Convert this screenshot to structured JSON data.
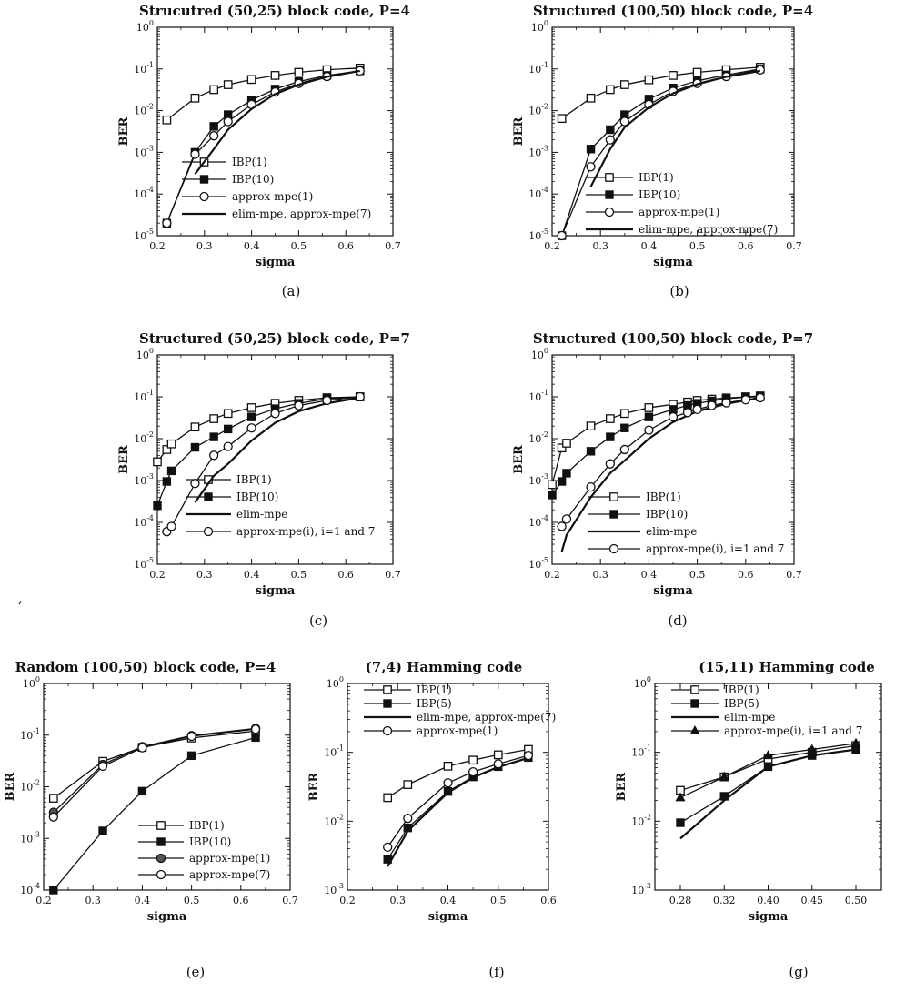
{
  "figure": {
    "stray_mark": ","
  },
  "chart_data": [
    {
      "caption": "(a)",
      "type": "line",
      "title": "Strucutred (50,25)  block code,  P=4",
      "xlabel": "sigma",
      "ylabel": "BER",
      "xlim": [
        0.2,
        0.7
      ],
      "ylim": [
        1e-05,
        1
      ],
      "yscale": "log",
      "xticks": [
        0.2,
        0.3,
        0.4,
        0.5,
        0.6,
        0.7
      ],
      "yticks": [
        -5,
        -4,
        -3,
        -2,
        -1,
        0
      ],
      "series": [
        {
          "name": "IBP(1)",
          "marker": "square-open",
          "x": [
            0.22,
            0.28,
            0.32,
            0.35,
            0.4,
            0.45,
            0.5,
            0.56,
            0.63
          ],
          "y": [
            0.006,
            0.02,
            0.032,
            0.042,
            0.056,
            0.07,
            0.083,
            0.096,
            0.105
          ]
        },
        {
          "name": "IBP(10)",
          "marker": "square-filled",
          "x": [
            0.22,
            0.28,
            0.32,
            0.35,
            0.4,
            0.45,
            0.5,
            0.56,
            0.63
          ],
          "y": [
            2e-05,
            0.001,
            0.0042,
            0.008,
            0.018,
            0.033,
            0.05,
            0.07,
            0.09
          ]
        },
        {
          "name": "approx-mpe(1)",
          "marker": "circle-open",
          "x": [
            0.22,
            0.28,
            0.32,
            0.35,
            0.4,
            0.45,
            0.5,
            0.56,
            0.63
          ],
          "y": [
            2e-05,
            0.0009,
            0.0025,
            0.0055,
            0.014,
            0.028,
            0.045,
            0.066,
            0.09
          ]
        },
        {
          "name": "elim-mpe,  approx-mpe(7)",
          "marker": "none",
          "x": [
            0.28,
            0.32,
            0.35,
            0.4,
            0.45,
            0.5,
            0.56,
            0.63
          ],
          "y": [
            0.0003,
            0.0012,
            0.0035,
            0.011,
            0.025,
            0.042,
            0.065,
            0.09
          ]
        }
      ]
    },
    {
      "caption": "(b)",
      "type": "line",
      "title": "Structured (100,50) block code, P=4",
      "xlabel": "sigma",
      "ylabel": "BER",
      "xlim": [
        0.2,
        0.7
      ],
      "ylim": [
        1e-05,
        1
      ],
      "yscale": "log",
      "xticks": [
        0.2,
        0.3,
        0.4,
        0.5,
        0.6,
        0.7
      ],
      "yticks": [
        -5,
        -4,
        -3,
        -2,
        -1,
        0
      ],
      "series": [
        {
          "name": "IBP(1)",
          "marker": "square-open",
          "x": [
            0.22,
            0.28,
            0.32,
            0.35,
            0.4,
            0.45,
            0.5,
            0.56,
            0.63
          ],
          "y": [
            0.0065,
            0.02,
            0.032,
            0.042,
            0.055,
            0.07,
            0.083,
            0.096,
            0.11
          ]
        },
        {
          "name": "IBP(10)",
          "marker": "square-filled",
          "x": [
            0.22,
            0.28,
            0.32,
            0.35,
            0.4,
            0.45,
            0.5,
            0.56,
            0.63
          ],
          "y": [
            1e-05,
            0.0012,
            0.0035,
            0.008,
            0.019,
            0.035,
            0.052,
            0.072,
            0.1
          ]
        },
        {
          "name": "approx-mpe(1)",
          "marker": "circle-open",
          "x": [
            0.22,
            0.28,
            0.32,
            0.35,
            0.4,
            0.45,
            0.5,
            0.56,
            0.63
          ],
          "y": [
            1e-05,
            0.00045,
            0.002,
            0.0055,
            0.014,
            0.029,
            0.045,
            0.066,
            0.095
          ]
        },
        {
          "name": "elim-mpe, approx-mpe(7)",
          "marker": "none",
          "x": [
            0.28,
            0.32,
            0.35,
            0.4,
            0.45,
            0.5,
            0.56,
            0.63
          ],
          "y": [
            0.00015,
            0.0012,
            0.004,
            0.012,
            0.026,
            0.043,
            0.065,
            0.09
          ]
        }
      ]
    },
    {
      "caption": "(c)",
      "type": "line",
      "title": "Structured (50,25) block code, P=7",
      "xlabel": "sigma",
      "ylabel": "BER",
      "xlim": [
        0.2,
        0.7
      ],
      "ylim": [
        1e-05,
        1
      ],
      "yscale": "log",
      "xticks": [
        0.2,
        0.3,
        0.4,
        0.5,
        0.6,
        0.7
      ],
      "yticks": [
        -5,
        -4,
        -3,
        -2,
        -1,
        0
      ],
      "series": [
        {
          "name": "IBP(1)",
          "marker": "square-open",
          "x": [
            0.2,
            0.22,
            0.23,
            0.28,
            0.32,
            0.35,
            0.4,
            0.45,
            0.5,
            0.56,
            0.63
          ],
          "y": [
            0.0028,
            0.0055,
            0.0075,
            0.019,
            0.03,
            0.04,
            0.055,
            0.07,
            0.082,
            0.095,
            0.1
          ]
        },
        {
          "name": "IBP(10)",
          "marker": "square-filled",
          "x": [
            0.2,
            0.22,
            0.23,
            0.28,
            0.32,
            0.35,
            0.4,
            0.45,
            0.5,
            0.56,
            0.63
          ],
          "y": [
            0.00025,
            0.00095,
            0.0017,
            0.0062,
            0.011,
            0.017,
            0.033,
            0.052,
            0.07,
            0.09,
            0.1
          ]
        },
        {
          "name": "elim-mpe",
          "marker": "none",
          "x": [
            0.28,
            0.32,
            0.35,
            0.4,
            0.45,
            0.5,
            0.56,
            0.63
          ],
          "y": [
            0.0003,
            0.0013,
            0.0025,
            0.009,
            0.024,
            0.045,
            0.07,
            0.095
          ]
        },
        {
          "name": "approx-mpe(i), i=1 and 7",
          "marker": "circle-open",
          "x": [
            0.22,
            0.23,
            0.28,
            0.32,
            0.35,
            0.4,
            0.45,
            0.5,
            0.56,
            0.63
          ],
          "y": [
            6e-05,
            8e-05,
            0.00085,
            0.004,
            0.0065,
            0.018,
            0.04,
            0.062,
            0.082,
            0.1
          ]
        }
      ]
    },
    {
      "caption": "(d)",
      "type": "line",
      "title": "Structured (100,50) block code, P=7",
      "xlabel": "sigma",
      "ylabel": "BER",
      "xlim": [
        0.2,
        0.7
      ],
      "ylim": [
        1e-05,
        1
      ],
      "yscale": "log",
      "xticks": [
        0.2,
        0.3,
        0.4,
        0.5,
        0.6,
        0.7
      ],
      "yticks": [
        -5,
        -4,
        -3,
        -2,
        -1,
        0
      ],
      "series": [
        {
          "name": "IBP(1)",
          "marker": "square-open",
          "x": [
            0.2,
            0.22,
            0.23,
            0.28,
            0.32,
            0.35,
            0.4,
            0.45,
            0.48,
            0.5,
            0.53,
            0.56,
            0.6,
            0.63
          ],
          "y": [
            0.0008,
            0.006,
            0.0078,
            0.02,
            0.03,
            0.04,
            0.055,
            0.066,
            0.075,
            0.082,
            0.088,
            0.094,
            0.1,
            0.105
          ]
        },
        {
          "name": "IBP(10)",
          "marker": "square-filled",
          "x": [
            0.2,
            0.22,
            0.23,
            0.28,
            0.32,
            0.35,
            0.4,
            0.45,
            0.48,
            0.5,
            0.53,
            0.56,
            0.6,
            0.63
          ],
          "y": [
            0.00045,
            0.00095,
            0.0015,
            0.005,
            0.011,
            0.018,
            0.033,
            0.05,
            0.062,
            0.07,
            0.08,
            0.09,
            0.098,
            0.1
          ]
        },
        {
          "name": "elim-mpe",
          "marker": "none",
          "x": [
            0.22,
            0.23,
            0.28,
            0.32,
            0.35,
            0.4,
            0.45,
            0.5,
            0.56,
            0.63
          ],
          "y": [
            2e-05,
            5e-05,
            0.0004,
            0.0015,
            0.003,
            0.01,
            0.025,
            0.045,
            0.068,
            0.095
          ]
        },
        {
          "name": "approx-mpe(i), i=1 and 7",
          "marker": "circle-open",
          "x": [
            0.22,
            0.23,
            0.28,
            0.32,
            0.35,
            0.4,
            0.45,
            0.48,
            0.5,
            0.53,
            0.56,
            0.6,
            0.63
          ],
          "y": [
            8e-05,
            0.00012,
            0.0007,
            0.0025,
            0.0055,
            0.016,
            0.033,
            0.042,
            0.05,
            0.062,
            0.072,
            0.085,
            0.095
          ]
        }
      ]
    },
    {
      "caption": "(e)",
      "type": "line",
      "title": "Random (100,50) block code, P=4",
      "xlabel": "sigma",
      "ylabel": "BER",
      "xlim": [
        0.2,
        0.7
      ],
      "ylim": [
        0.0001,
        1
      ],
      "yscale": "log",
      "xticks": [
        0.2,
        0.3,
        0.4,
        0.5,
        0.6,
        0.7
      ],
      "yticks": [
        -4,
        -3,
        -2,
        -1,
        0
      ],
      "series": [
        {
          "name": "IBP(1)",
          "marker": "square-open",
          "x": [
            0.22,
            0.32,
            0.4,
            0.5,
            0.63
          ],
          "y": [
            0.006,
            0.031,
            0.058,
            0.088,
            0.12
          ]
        },
        {
          "name": "IBP(10)",
          "marker": "square-filled",
          "x": [
            0.22,
            0.32,
            0.4,
            0.5,
            0.63
          ],
          "y": [
            0.0001,
            0.0014,
            0.0082,
            0.04,
            0.09
          ]
        },
        {
          "name": "approx-mpe(1)",
          "marker": "circle-filled",
          "x": [
            0.22,
            0.32,
            0.4,
            0.5,
            0.63
          ],
          "y": [
            0.0032,
            0.027,
            0.06,
            0.098,
            0.135
          ]
        },
        {
          "name": "approx-mpe(7)",
          "marker": "circle-open",
          "x": [
            0.22,
            0.32,
            0.4,
            0.5,
            0.63
          ],
          "y": [
            0.0026,
            0.025,
            0.057,
            0.095,
            0.13
          ]
        }
      ]
    },
    {
      "caption": "(f)",
      "type": "line",
      "title": "(7,4) Hamming code",
      "xlabel": "sigma",
      "ylabel": "BER",
      "xlim": [
        0.2,
        0.6
      ],
      "ylim": [
        0.001,
        1
      ],
      "yscale": "log",
      "xticks": [
        0.2,
        0.3,
        0.4,
        0.5,
        0.6
      ],
      "yticks": [
        -3,
        -2,
        -1,
        0
      ],
      "series": [
        {
          "name": "IBP(1)",
          "marker": "square-open",
          "x": [
            0.28,
            0.32,
            0.4,
            0.45,
            0.5,
            0.56
          ],
          "y": [
            0.022,
            0.034,
            0.063,
            0.077,
            0.092,
            0.11
          ]
        },
        {
          "name": "IBP(5)",
          "marker": "square-filled",
          "x": [
            0.28,
            0.32,
            0.4,
            0.45,
            0.5,
            0.56
          ],
          "y": [
            0.0028,
            0.008,
            0.027,
            0.044,
            0.062,
            0.084
          ]
        },
        {
          "name": "elim-mpe, approx-mpe(7)",
          "marker": "none",
          "x": [
            0.28,
            0.32,
            0.4,
            0.45,
            0.5,
            0.56
          ],
          "y": [
            0.0022,
            0.0072,
            0.026,
            0.043,
            0.061,
            0.083
          ]
        },
        {
          "name": "approx-mpe(1)",
          "marker": "circle-open",
          "x": [
            0.28,
            0.32,
            0.4,
            0.45,
            0.5,
            0.56
          ],
          "y": [
            0.0042,
            0.011,
            0.036,
            0.052,
            0.068,
            0.09
          ]
        }
      ]
    },
    {
      "caption": "(g)",
      "type": "line",
      "title": "(15,11) Hamming code",
      "xlabel": "sigma",
      "ylabel": "BER",
      "xcategories": [
        "0.28",
        "0.32",
        "0.40",
        "0.45",
        "0.50"
      ],
      "ylim": [
        0.001,
        1
      ],
      "yscale": "log",
      "yticks": [
        -3,
        -2,
        -1,
        0
      ],
      "series": [
        {
          "name": "IBP(1)",
          "marker": "square-open",
          "y": [
            0.028,
            0.044,
            0.08,
            0.1,
            0.125
          ]
        },
        {
          "name": "IBP(5)",
          "marker": "square-filled",
          "y": [
            0.0095,
            0.023,
            0.062,
            0.09,
            0.11
          ]
        },
        {
          "name": "elim-mpe",
          "marker": "none",
          "y": [
            0.0056,
            0.02,
            0.062,
            0.09,
            0.11
          ]
        },
        {
          "name": "approx-mpe(i), i=1 and 7",
          "marker": "triangle-filled",
          "y": [
            0.022,
            0.044,
            0.09,
            0.11,
            0.135
          ]
        }
      ]
    }
  ]
}
